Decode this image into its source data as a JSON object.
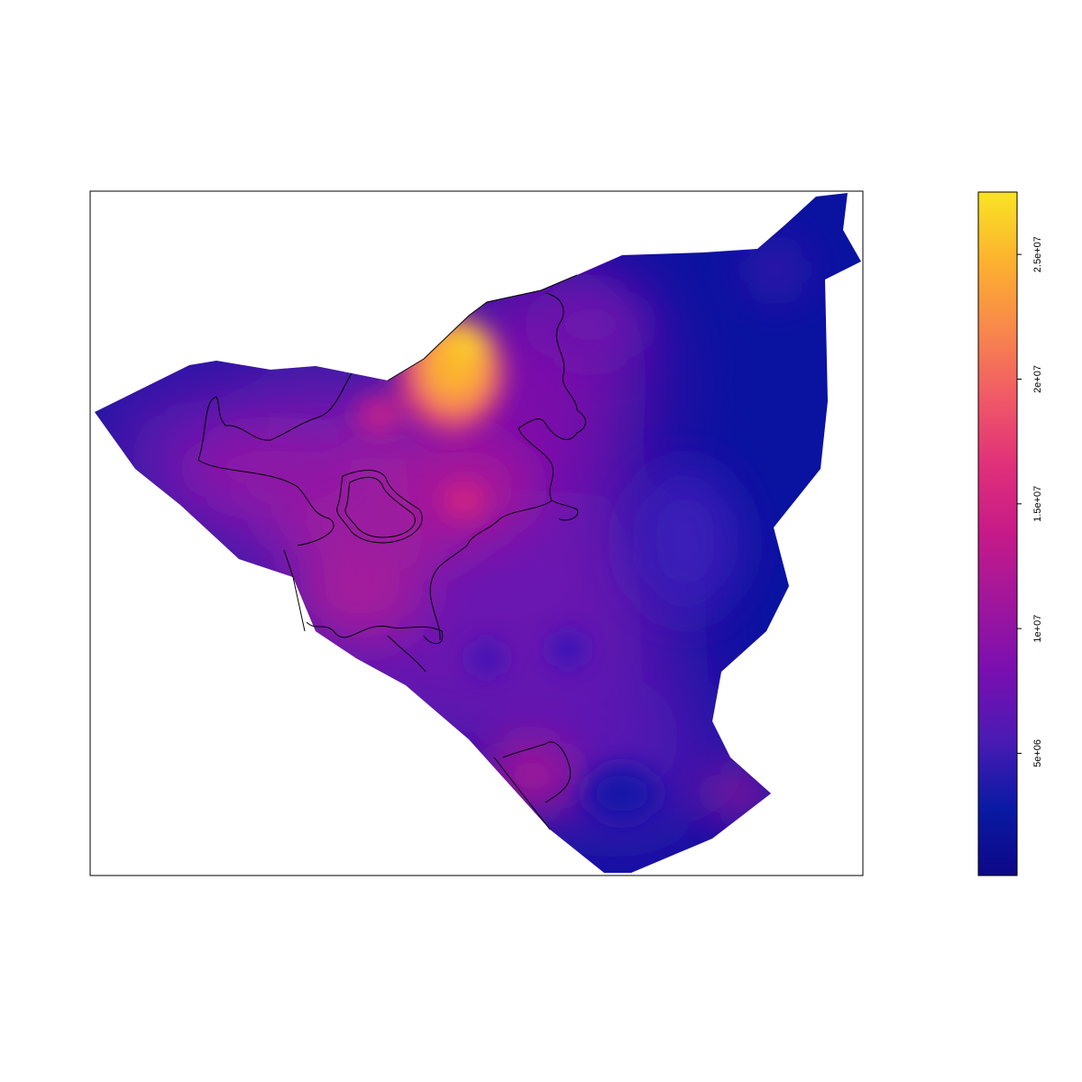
{
  "map": {
    "colormap": "plasma",
    "region_outline_color": "#000000",
    "hotspot_color": "#FFC21E",
    "background_color": "#0A12A0"
  },
  "legend": {
    "min_value": 100000,
    "max_value": 27500000,
    "ticks": [
      {
        "value": 5000000,
        "label": "5e+06"
      },
      {
        "value": 10000000,
        "label": "1e+07"
      },
      {
        "value": 15000000,
        "label": "1.5e+07"
      },
      {
        "value": 20000000,
        "label": "2e+07"
      },
      {
        "value": 25000000,
        "label": "2.5e+07"
      }
    ],
    "colors": [
      "#0D0887",
      "#0A1AA4",
      "#4B1AB4",
      "#7A0FB0",
      "#A0169C",
      "#C61A88",
      "#E0307A",
      "#F05A66",
      "#F8884C",
      "#FCB22E",
      "#F9E424"
    ]
  }
}
